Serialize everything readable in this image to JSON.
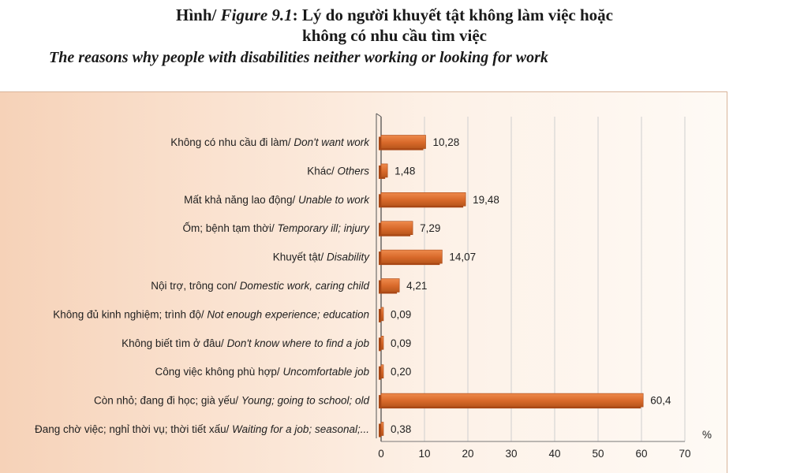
{
  "header": {
    "title_prefix": "Hình/ ",
    "title_figure": "Figure 9.1",
    "title_rest": ": Lý do người khuyết tật không làm việc hoặc",
    "title_line2": "không có nhu cầu tìm việc",
    "title_en": "The reasons why people with disabilities neither working or looking for work"
  },
  "chart_data": {
    "type": "bar",
    "orientation": "horizontal",
    "categories": [
      {
        "vi": "Không có nhu cầu đi làm/ ",
        "en": "Don't want work"
      },
      {
        "vi": "Khác/ ",
        "en": "Others"
      },
      {
        "vi": "Mất khả năng lao động/ ",
        "en": "Unable to work"
      },
      {
        "vi": "Ốm; bệnh tạm thời/ ",
        "en": "Temporary ill; injury"
      },
      {
        "vi": "Khuyết tật/ ",
        "en": "Disability"
      },
      {
        "vi": "Nội trợ, trông con/ ",
        "en": "Domestic work, caring child"
      },
      {
        "vi": "Không đủ kinh nghiệm; trình độ/ ",
        "en": "Not enough experience; education"
      },
      {
        "vi": "Không biết tìm ở đâu/ ",
        "en": "Don't know where to find a job"
      },
      {
        "vi": "Công việc không phù hợp/ ",
        "en": "Uncomfortable job"
      },
      {
        "vi": "Còn nhỏ; đang đi học; già yếu/ ",
        "en": "Young; going to school; old"
      },
      {
        "vi": "Đang chờ việc; nghỉ thời vụ; thời tiết xấu/ ",
        "en": "Waiting for a job; seasonal;..."
      }
    ],
    "values": [
      10.28,
      1.48,
      19.48,
      7.29,
      14.07,
      4.21,
      0.09,
      0.09,
      0.2,
      60.4,
      0.38
    ],
    "value_labels": [
      "10,28",
      "1,48",
      "19,48",
      "7,29",
      "14,07",
      "4,21",
      "0,09",
      "0,09",
      "0,20",
      "60,4",
      "0,38"
    ],
    "xlim": [
      0,
      70
    ],
    "xticks": [
      "0",
      "10",
      "20",
      "30",
      "40",
      "50",
      "60",
      "70"
    ],
    "xlabel": "",
    "ylabel": "",
    "unit": "%",
    "grid": true,
    "bar_color": "#d8692a",
    "bar_color_dark": "#a84714"
  }
}
